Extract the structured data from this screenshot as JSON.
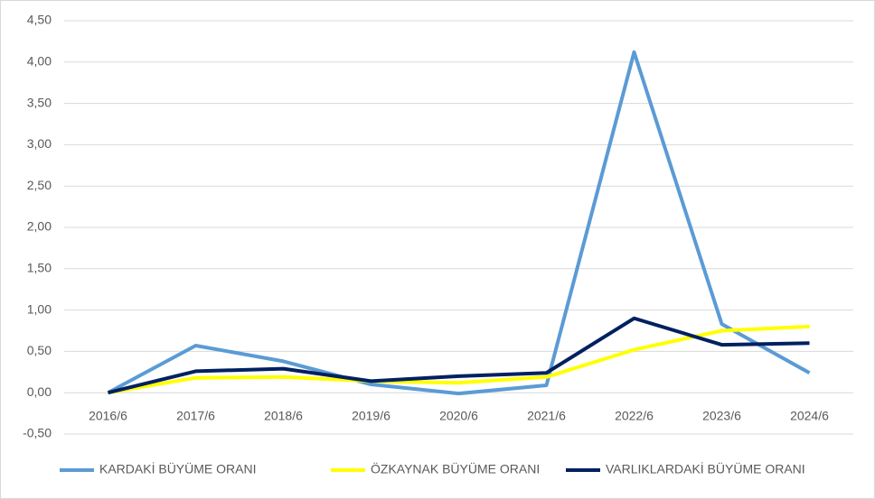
{
  "chart_data": {
    "type": "line",
    "categories": [
      "2016/6",
      "2017/6",
      "2018/6",
      "2019/6",
      "2020/6",
      "2021/6",
      "2022/6",
      "2023/6",
      "2024/6"
    ],
    "series": [
      {
        "name": "KARDAKİ BÜYÜME ORANI",
        "color": "#5b9bd5",
        "values": [
          0,
          0.57,
          0.38,
          0.1,
          -0.01,
          0.09,
          4.12,
          0.83,
          0.24
        ]
      },
      {
        "name": "ÖZKAYNAK BÜYÜME ORANI",
        "color": "#ffff00",
        "values": [
          0,
          0.18,
          0.19,
          0.14,
          0.12,
          0.19,
          0.52,
          0.75,
          0.8
        ]
      },
      {
        "name": "VARLIKLARDAKİ BÜYÜME ORANI",
        "color": "#002060",
        "values": [
          0,
          0.26,
          0.29,
          0.14,
          0.2,
          0.24,
          0.9,
          0.58,
          0.6
        ]
      }
    ],
    "ylim": [
      -0.5,
      4.5
    ],
    "yticks": [
      {
        "value": -0.5,
        "label": "-0,50"
      },
      {
        "value": 0,
        "label": "0,00"
      },
      {
        "value": 0.5,
        "label": "0,50"
      },
      {
        "value": 1,
        "label": "1,00"
      },
      {
        "value": 1.5,
        "label": "1,50"
      },
      {
        "value": 2,
        "label": "2,00"
      },
      {
        "value": 2.5,
        "label": "2,50"
      },
      {
        "value": 3,
        "label": "3,00"
      },
      {
        "value": 3.5,
        "label": "3,50"
      },
      {
        "value": 4,
        "label": "4,00"
      },
      {
        "value": 4.5,
        "label": "4,50"
      }
    ],
    "grid": true,
    "legend": "bottom"
  }
}
